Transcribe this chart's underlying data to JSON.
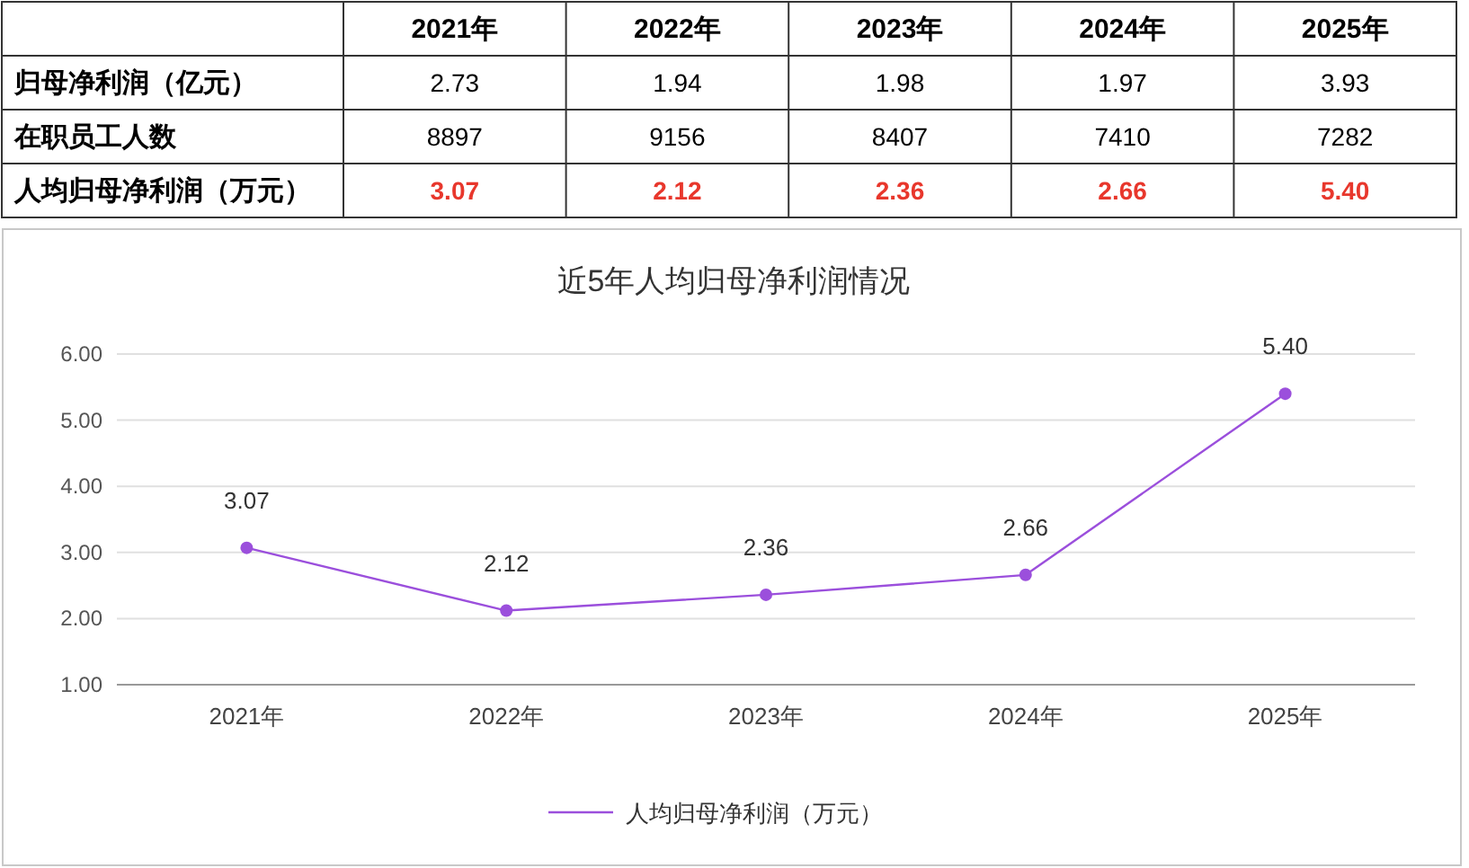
{
  "chart_data": [
    {
      "type": "heatmap",
      "categories": [
        "2021年",
        "2022年",
        "2023年",
        "2024年",
        "2025年"
      ],
      "y_categories": [
        "归母净利润（亿元）",
        "在职员工人数",
        "人均归母净利润（万元）"
      ],
      "cells": [
        [
          2.73,
          1.94,
          1.98,
          1.97,
          3.93
        ],
        [
          8897,
          9156,
          8407,
          7410,
          7282
        ],
        [
          3.07,
          2.12,
          2.36,
          2.66,
          5.4
        ]
      ],
      "cell_labels": [
        [
          "2.73",
          "1.94",
          "1.98",
          "1.97",
          "3.93"
        ],
        [
          "8897",
          "9156",
          "8407",
          "7410",
          "7282"
        ],
        [
          "3.07",
          "2.12",
          "2.36",
          "2.66",
          "5.40"
        ]
      ]
    },
    {
      "type": "line",
      "title": "近5年人均归母净利润情况",
      "categories": [
        "2021年",
        "2022年",
        "2023年",
        "2024年",
        "2025年"
      ],
      "series": [
        {
          "name": "人均归母净利润（万元）",
          "color": "#9b4fdc",
          "values": [
            3.07,
            2.12,
            2.36,
            2.66,
            5.4
          ],
          "value_labels": [
            "3.07",
            "2.12",
            "2.36",
            "2.66",
            "5.40"
          ]
        }
      ],
      "ylim": [
        1,
        6
      ],
      "yticks": [
        {
          "value": 1,
          "label": "1.00"
        },
        {
          "value": 2,
          "label": "2.00"
        },
        {
          "value": 3,
          "label": "3.00"
        },
        {
          "value": 4,
          "label": "4.00"
        },
        {
          "value": 5,
          "label": "5.00"
        },
        {
          "value": 6,
          "label": "6.00"
        }
      ],
      "grid": "y",
      "legend": "bottom",
      "marker": "circle",
      "line_style": "solid"
    }
  ]
}
